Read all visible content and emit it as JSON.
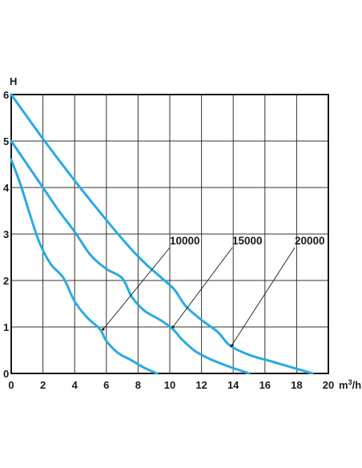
{
  "chart_data": {
    "type": "line",
    "title": "",
    "ylabel": "H",
    "xlabel": "m³/h",
    "xlim": [
      0,
      20
    ],
    "ylim": [
      0,
      6
    ],
    "x_ticks": [
      0,
      2,
      4,
      6,
      8,
      10,
      12,
      14,
      16,
      18,
      20
    ],
    "y_ticks": [
      0,
      1,
      2,
      3,
      4,
      5,
      6
    ],
    "grid": true,
    "legend": "none",
    "line_color": "#29abe2",
    "series": [
      {
        "name": "10000",
        "points": [
          [
            0,
            4.6
          ],
          [
            0.6,
            4.05
          ],
          [
            1.2,
            3.4
          ],
          [
            1.8,
            2.8
          ],
          [
            2.5,
            2.35
          ],
          [
            3.3,
            2.05
          ],
          [
            4.0,
            1.55
          ],
          [
            4.8,
            1.2
          ],
          [
            5.6,
            0.95
          ],
          [
            6.0,
            0.7
          ],
          [
            6.7,
            0.45
          ],
          [
            7.6,
            0.28
          ],
          [
            8.4,
            0.12
          ],
          [
            9.2,
            0.0
          ]
        ]
      },
      {
        "name": "15000",
        "points": [
          [
            0,
            5.0
          ],
          [
            1.0,
            4.5
          ],
          [
            2.0,
            4.0
          ],
          [
            3.0,
            3.5
          ],
          [
            4.0,
            3.05
          ],
          [
            5.0,
            2.55
          ],
          [
            6.0,
            2.25
          ],
          [
            7.0,
            2.05
          ],
          [
            7.6,
            1.65
          ],
          [
            8.4,
            1.35
          ],
          [
            9.4,
            1.15
          ],
          [
            10.2,
            0.95
          ],
          [
            10.8,
            0.72
          ],
          [
            11.6,
            0.48
          ],
          [
            12.6,
            0.3
          ],
          [
            13.8,
            0.14
          ],
          [
            15.0,
            0.0
          ]
        ]
      },
      {
        "name": "20000",
        "points": [
          [
            0,
            6.0
          ],
          [
            2.0,
            5.05
          ],
          [
            4.0,
            4.15
          ],
          [
            6.0,
            3.3
          ],
          [
            7.5,
            2.7
          ],
          [
            8.5,
            2.35
          ],
          [
            9.5,
            2.05
          ],
          [
            10.3,
            1.8
          ],
          [
            11.0,
            1.45
          ],
          [
            12.0,
            1.15
          ],
          [
            13.0,
            0.9
          ],
          [
            13.8,
            0.6
          ],
          [
            15.0,
            0.4
          ],
          [
            16.5,
            0.25
          ],
          [
            18.0,
            0.1
          ],
          [
            19.0,
            0.0
          ]
        ]
      }
    ],
    "annotations": [
      {
        "label": "10000",
        "series": "10000",
        "point": [
          5.8,
          0.95
        ]
      },
      {
        "label": "15000",
        "series": "15000",
        "point": [
          10.2,
          1.0
        ]
      },
      {
        "label": "20000",
        "series": "20000",
        "point": [
          13.9,
          0.6
        ]
      }
    ]
  }
}
